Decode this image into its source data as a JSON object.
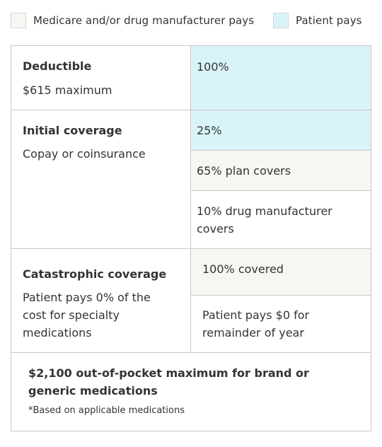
{
  "colors": {
    "manufacturer_fill": "#f8f6f2",
    "patient_fill": "#d9f4f9",
    "border": "#c9c9c9",
    "text": "#333333"
  },
  "legend": {
    "items": [
      {
        "label": "Medicare and/or drug manufacturer pays"
      },
      {
        "label": "Patient pays"
      }
    ]
  },
  "rows": [
    {
      "title": "Deductible",
      "description": [
        "$615 maximum"
      ],
      "cells": [
        {
          "lines": [
            "100%"
          ],
          "payer": "patient"
        }
      ]
    },
    {
      "title": "Initial coverage",
      "description": [
        "Copay or coinsurance"
      ],
      "cells": [
        {
          "lines": [
            "25%"
          ],
          "payer": "patient"
        },
        {
          "lines": [
            "65% plan covers"
          ],
          "payer": "manufacturer"
        },
        {
          "lines": [
            "10% drug manufacturer",
            "covers"
          ],
          "payer": "none"
        }
      ]
    },
    {
      "title": "Catastrophic coverage",
      "description": [
        "Patient pays 0% of the",
        "cost for specialty",
        "medications"
      ],
      "cells": [
        {
          "lines": [
            "100% covered"
          ],
          "payer": "manufacturer"
        },
        {
          "lines": [
            "Patient pays $0 for",
            "remainder of year"
          ],
          "payer": "none"
        }
      ]
    }
  ],
  "footer": {
    "title": "$2,100 out-of-pocket maximum for brand or generic medications",
    "note": "*Based on applicable medications"
  }
}
